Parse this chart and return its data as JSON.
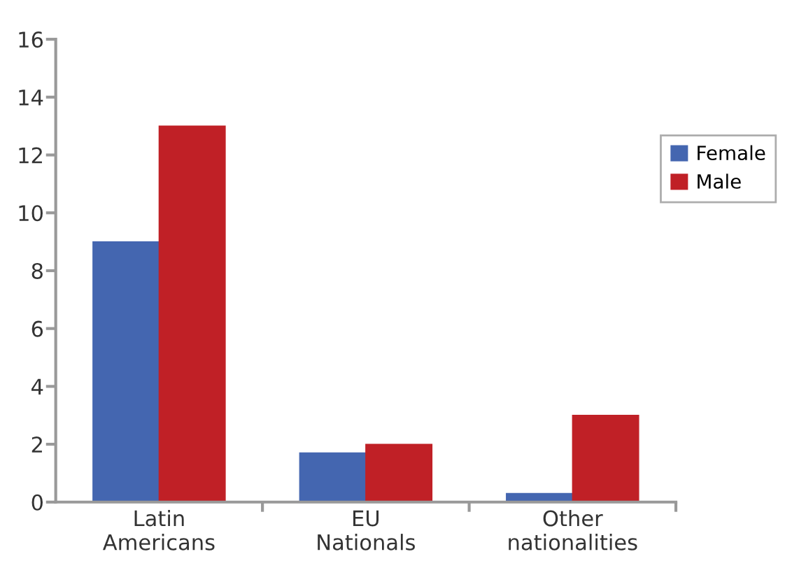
{
  "chart_data": {
    "type": "bar",
    "categories": [
      "Latin\nAmericans",
      "EU\nNationals",
      "Other\nnationalities"
    ],
    "series": [
      {
        "name": "Female",
        "color": "#4466b0",
        "values": [
          9.0,
          1.7,
          0.3
        ]
      },
      {
        "name": "Male",
        "color": "#c02026",
        "values": [
          13.0,
          2.0,
          3.0
        ]
      }
    ],
    "ylim": [
      0,
      16
    ],
    "yticks": [
      0,
      2,
      4,
      6,
      8,
      10,
      12,
      14,
      16
    ],
    "grid": false,
    "legend": "right"
  }
}
